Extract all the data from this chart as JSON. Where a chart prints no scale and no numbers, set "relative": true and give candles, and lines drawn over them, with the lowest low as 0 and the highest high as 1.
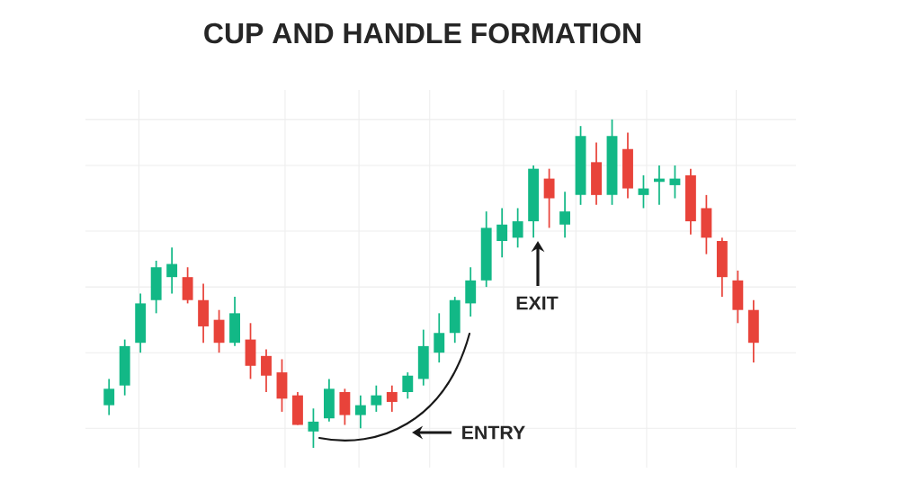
{
  "chart_data": {
    "type": "candlestick",
    "title": "CUP AND HANDLE FORMATION",
    "relative": true,
    "grid": true,
    "categories": [
      null,
      null,
      null,
      null,
      null,
      null,
      null,
      null,
      null,
      null,
      null,
      null,
      null,
      null,
      null,
      null,
      null,
      null,
      null,
      null,
      null,
      null,
      null,
      null,
      null,
      null,
      null,
      null,
      null,
      null,
      null,
      null,
      null,
      null,
      null,
      null,
      null,
      null,
      null,
      null,
      null,
      null
    ],
    "ohlc": [
      [
        0.13,
        0.21,
        0.1,
        0.18
      ],
      [
        0.19,
        0.33,
        0.16,
        0.31
      ],
      [
        0.32,
        0.47,
        0.29,
        0.44
      ],
      [
        0.45,
        0.57,
        0.41,
        0.55
      ],
      [
        0.52,
        0.61,
        0.47,
        0.56
      ],
      [
        0.52,
        0.55,
        0.44,
        0.45
      ],
      [
        0.45,
        0.5,
        0.32,
        0.37
      ],
      [
        0.39,
        0.42,
        0.29,
        0.32
      ],
      [
        0.32,
        0.46,
        0.31,
        0.41
      ],
      [
        0.33,
        0.38,
        0.21,
        0.25
      ],
      [
        0.28,
        0.3,
        0.17,
        0.22
      ],
      [
        0.23,
        0.27,
        0.11,
        0.15
      ],
      [
        0.16,
        0.17,
        0.07,
        0.07
      ],
      [
        0.05,
        0.12,
        0,
        0.08
      ],
      [
        0.09,
        0.21,
        0.08,
        0.18
      ],
      [
        0.17,
        0.18,
        0.07,
        0.1
      ],
      [
        0.1,
        0.16,
        0.06,
        0.13
      ],
      [
        0.13,
        0.19,
        0.11,
        0.16
      ],
      [
        0.17,
        0.19,
        0.11,
        0.14
      ],
      [
        0.17,
        0.23,
        0.15,
        0.22
      ],
      [
        0.21,
        0.36,
        0.19,
        0.31
      ],
      [
        0.29,
        0.41,
        0.26,
        0.35
      ],
      [
        0.35,
        0.46,
        0.32,
        0.45
      ],
      [
        0.44,
        0.55,
        0.4,
        0.51
      ],
      [
        0.51,
        0.72,
        0.49,
        0.67
      ],
      [
        0.63,
        0.73,
        0.58,
        0.68
      ],
      [
        0.64,
        0.73,
        0.61,
        0.69
      ],
      [
        0.69,
        0.86,
        0.64,
        0.85
      ],
      [
        0.82,
        0.85,
        0.67,
        0.76
      ],
      [
        0.68,
        0.78,
        0.64,
        0.72
      ],
      [
        0.77,
        0.98,
        0.74,
        0.95
      ],
      [
        0.87,
        0.93,
        0.74,
        0.77
      ],
      [
        0.77,
        1,
        0.74,
        0.95
      ],
      [
        0.91,
        0.96,
        0.76,
        0.79
      ],
      [
        0.77,
        0.83,
        0.73,
        0.79
      ],
      [
        0.81,
        0.86,
        0.74,
        0.82
      ],
      [
        0.8,
        0.86,
        0.76,
        0.82
      ],
      [
        0.83,
        0.85,
        0.65,
        0.69
      ],
      [
        0.73,
        0.77,
        0.59,
        0.64
      ],
      [
        0.63,
        0.64,
        0.46,
        0.52
      ],
      [
        0.51,
        0.54,
        0.38,
        0.42
      ],
      [
        0.42,
        0.45,
        0.26,
        0.32
      ]
    ],
    "colors": [
      "#12b886",
      "#12b886",
      "#12b886",
      "#12b886",
      "#12b886",
      "#e8433a",
      "#e8433a",
      "#e8433a",
      "#12b886",
      "#e8433a",
      "#e8433a",
      "#e8433a",
      "#e8433a",
      "#12b886",
      "#12b886",
      "#e8433a",
      "#12b886",
      "#12b886",
      "#e8433a",
      "#12b886",
      "#12b886",
      "#12b886",
      "#12b886",
      "#12b886",
      "#12b886",
      "#12b886",
      "#12b886",
      "#12b886",
      "#e8433a",
      "#12b886",
      "#12b886",
      "#e8433a",
      "#12b886",
      "#e8433a",
      "#12b886",
      "#12b886",
      "#12b886",
      "#e8433a",
      "#e8433a",
      "#e8433a",
      "#e8433a",
      "#e8433a"
    ],
    "annotations": [
      "ENTRY",
      "EXIT"
    ]
  }
}
